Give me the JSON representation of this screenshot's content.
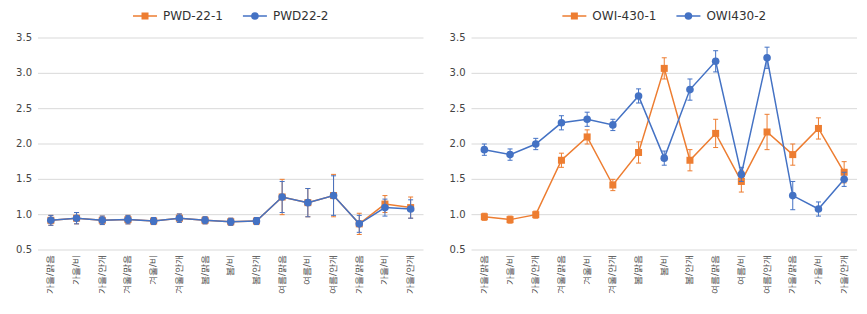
{
  "chart_data": [
    {
      "type": "line",
      "categories": [
        "가을/맑음",
        "가을/비",
        "가을/안개",
        "겨울/맑음",
        "겨울/비",
        "겨울/안개",
        "봄/맑음",
        "봄/비",
        "봄/안개",
        "여름/맑음",
        "여름/비",
        "여름/안개",
        "가을/맑음",
        "가을/비",
        "가을/안개"
      ],
      "series": [
        {
          "name": "PWD-22-1",
          "color": "#ED7D31",
          "marker": "square",
          "values": [
            0.92,
            0.95,
            0.92,
            0.93,
            0.91,
            0.95,
            0.92,
            0.9,
            0.91,
            1.25,
            1.17,
            1.27,
            0.87,
            1.15,
            1.1
          ],
          "errors": [
            0.07,
            0.08,
            0.06,
            0.06,
            0.05,
            0.06,
            0.05,
            0.05,
            0.05,
            0.25,
            0.2,
            0.3,
            0.15,
            0.12,
            0.15
          ]
        },
        {
          "name": "PWD22-2",
          "color": "#4472C4",
          "marker": "circle",
          "values": [
            0.92,
            0.95,
            0.92,
            0.93,
            0.91,
            0.95,
            0.92,
            0.9,
            0.91,
            1.25,
            1.17,
            1.27,
            0.87,
            1.1,
            1.08
          ],
          "errors": [
            0.07,
            0.08,
            0.06,
            0.06,
            0.05,
            0.06,
            0.05,
            0.05,
            0.05,
            0.22,
            0.2,
            0.28,
            0.12,
            0.12,
            0.13
          ]
        }
      ],
      "ylim": [
        0.5,
        3.5
      ],
      "yticks": [
        0.5,
        {
          "value": 1.0,
          "label": "1.0"
        },
        1.5,
        {
          "value": 2.0,
          "label": "2.0"
        },
        2.5,
        {
          "value": 3.0,
          "label": "3.0"
        },
        3.5
      ],
      "grid": true,
      "legend": "top"
    },
    {
      "type": "line",
      "categories": [
        "가을/맑음",
        "가을/비",
        "가을/안개",
        "겨울/맑음",
        "겨울/비",
        "겨울/안개",
        "봄/맑음",
        "봄/비",
        "봄/안개",
        "여름/맑음",
        "여름/비",
        "여름/안개",
        "가을/맑음",
        "가을/비",
        "가을/안개"
      ],
      "series": [
        {
          "name": "OWI-430-1",
          "color": "#ED7D31",
          "marker": "square",
          "values": [
            0.97,
            0.93,
            1.0,
            1.77,
            2.1,
            1.42,
            1.88,
            3.07,
            1.77,
            2.15,
            1.47,
            2.17,
            1.85,
            2.22,
            1.6
          ],
          "errors": [
            0.05,
            0.05,
            0.05,
            0.1,
            0.1,
            0.08,
            0.15,
            0.15,
            0.15,
            0.2,
            0.15,
            0.25,
            0.15,
            0.15,
            0.15
          ]
        },
        {
          "name": "OWI430-2",
          "color": "#4472C4",
          "marker": "circle",
          "values": [
            1.92,
            1.85,
            2.0,
            2.3,
            2.35,
            2.27,
            2.68,
            1.8,
            2.77,
            3.17,
            1.57,
            3.22,
            1.27,
            1.08,
            1.5
          ],
          "errors": [
            0.08,
            0.08,
            0.08,
            0.1,
            0.1,
            0.08,
            0.1,
            0.1,
            0.15,
            0.15,
            0.1,
            0.15,
            0.2,
            0.1,
            0.1
          ]
        }
      ],
      "ylim": [
        0.5,
        3.5
      ],
      "yticks": [
        0.5,
        {
          "value": 1.0,
          "label": "1.0"
        },
        1.5,
        {
          "value": 2.0,
          "label": "2.0"
        },
        2.5,
        {
          "value": 3.0,
          "label": "3.0"
        },
        3.5
      ],
      "grid": true,
      "legend": "top"
    }
  ]
}
